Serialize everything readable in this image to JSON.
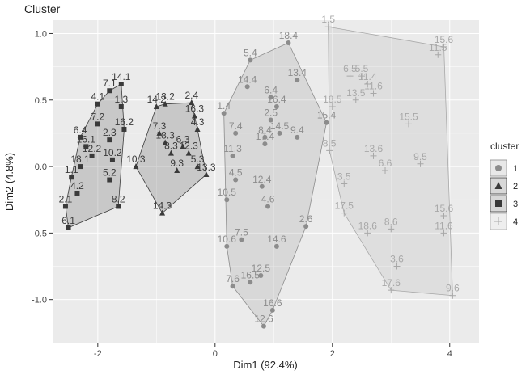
{
  "chart_data": {
    "type": "scatter",
    "title": "Cluster",
    "x_label": "Dim1 (92.4%)",
    "y_label": "Dim2 (4.8%)",
    "legend_title": "cluster",
    "legend": "right",
    "grid": true,
    "xlim": [
      -2.77,
      4.5
    ],
    "ylim": [
      -1.33,
      1.1
    ],
    "xticks": [
      -2,
      0,
      2,
      4
    ],
    "yticks": [
      {
        "value": -1,
        "label": "-1.0"
      },
      -0.5,
      {
        "value": 0,
        "label": "0.0"
      },
      0.5,
      {
        "value": 1,
        "label": "1.0"
      }
    ],
    "series": [
      {
        "name": "1",
        "marker": "circle",
        "color": "#8c8c8c",
        "labels": [
          "18.4",
          "5.4",
          "13.4",
          "14.4",
          "6.4",
          "16.4",
          "1.4",
          "2.5",
          "15.4",
          "7.4",
          "14.5",
          "8.4",
          "9.4",
          "17.4",
          "11.3",
          "4.5",
          "12.4",
          "10.5",
          "4.6",
          "2.6",
          "7.5",
          "10.6",
          "14.6",
          "12.5",
          "16.5",
          "7.6",
          "16.6",
          "12.6"
        ],
        "x": [
          1.25,
          0.6,
          1.4,
          0.55,
          0.95,
          1.05,
          0.15,
          0.95,
          1.9,
          0.35,
          1.1,
          0.85,
          1.4,
          0.85,
          0.3,
          0.35,
          0.8,
          0.2,
          0.9,
          1.55,
          0.45,
          0.2,
          1.05,
          0.78,
          0.6,
          0.3,
          0.98,
          0.83
        ],
        "values": [
          0.93,
          0.8,
          0.65,
          0.6,
          0.52,
          0.45,
          0.4,
          0.35,
          0.33,
          0.25,
          0.25,
          0.22,
          0.22,
          0.17,
          0.08,
          -0.1,
          -0.15,
          -0.25,
          -0.3,
          -0.45,
          -0.55,
          -0.6,
          -0.6,
          -0.82,
          -0.87,
          -0.9,
          -1.08,
          -1.2
        ]
      },
      {
        "name": "2",
        "marker": "triangle",
        "color": "#3a3a3a",
        "labels": [
          "14.2",
          "13.2",
          "2.4",
          "16.3",
          "4.3",
          "7.3",
          "18.3",
          "6.3",
          "8.3",
          "12.3",
          "5.3",
          "13.3",
          "9.3",
          "10.3",
          "14.3"
        ],
        "x": [
          -1.0,
          -0.85,
          -0.4,
          -0.35,
          -0.3,
          -0.95,
          -0.85,
          -0.55,
          -0.75,
          -0.45,
          -0.3,
          -0.15,
          -0.65,
          -1.35,
          -0.9
        ],
        "values": [
          0.45,
          0.47,
          0.48,
          0.38,
          0.28,
          0.25,
          0.18,
          0.15,
          0.1,
          0.1,
          0.0,
          -0.06,
          -0.03,
          0.0,
          -0.35
        ]
      },
      {
        "name": "3",
        "marker": "square",
        "color": "#3a3a3a",
        "labels": [
          "14.1",
          "7.1",
          "4.1",
          "1.3",
          "7.2",
          "16.2",
          "6.4",
          "16.1",
          "2.3",
          "12.2",
          "10.2",
          "18.1",
          "5.2",
          "1.1",
          "4.2",
          "2.1",
          "6.1",
          "8.2"
        ],
        "x": [
          -1.6,
          -1.8,
          -2.0,
          -1.6,
          -2.0,
          -1.55,
          -2.3,
          -2.2,
          -1.8,
          -2.1,
          -1.75,
          -2.3,
          -1.8,
          -2.45,
          -2.35,
          -2.55,
          -2.5,
          -1.65
        ],
        "values": [
          0.62,
          0.57,
          0.47,
          0.45,
          0.32,
          0.28,
          0.22,
          0.15,
          0.2,
          0.08,
          0.05,
          0.0,
          -0.1,
          -0.08,
          -0.2,
          -0.3,
          -0.46,
          -0.3
        ]
      },
      {
        "name": "4",
        "marker": "plus",
        "color": "#a8a8a8",
        "labels": [
          "1.5",
          "15.6",
          "11.5",
          "6.5",
          "5.5",
          "11.4",
          "11.6",
          "13.5",
          "18.5",
          "15.5",
          "8.5",
          "13.6",
          "9.5",
          "6.6",
          "3.5",
          "17.5",
          "18.6",
          "8.6",
          "15.6",
          "11.6",
          "3.6",
          "17.6",
          "9.6"
        ],
        "x": [
          1.93,
          3.9,
          3.8,
          2.3,
          2.5,
          2.6,
          2.7,
          2.4,
          2.0,
          3.3,
          1.95,
          2.7,
          3.5,
          2.9,
          2.2,
          2.2,
          2.6,
          3.0,
          3.9,
          3.9,
          3.1,
          3.0,
          4.05
        ],
        "values": [
          1.05,
          0.9,
          0.84,
          0.68,
          0.68,
          0.62,
          0.55,
          0.5,
          0.45,
          0.32,
          0.12,
          0.08,
          0.02,
          -0.03,
          -0.13,
          -0.35,
          -0.5,
          -0.47,
          -0.37,
          -0.5,
          -0.75,
          -0.93,
          -0.97
        ]
      }
    ]
  }
}
